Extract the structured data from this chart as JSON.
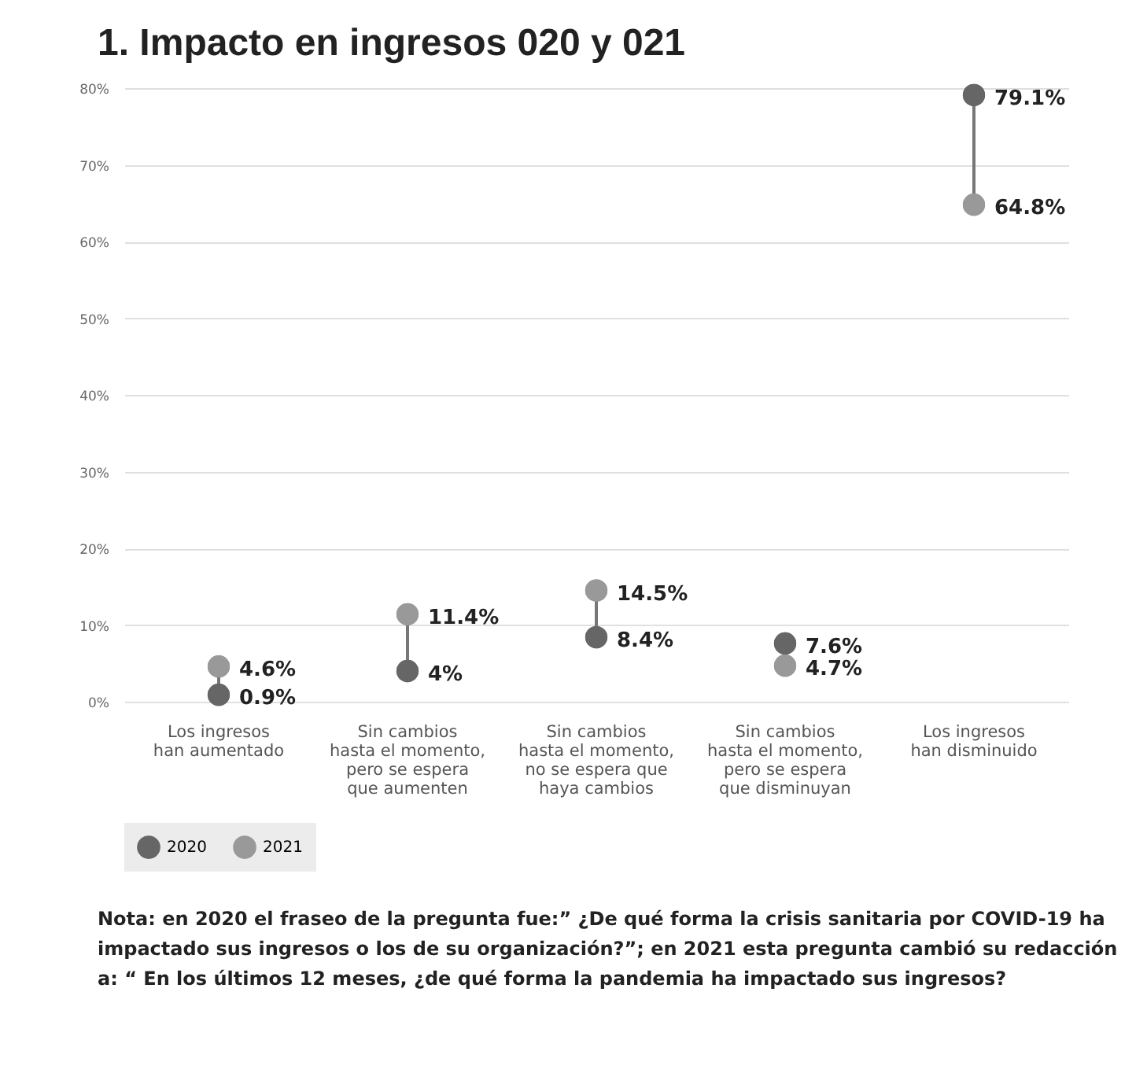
{
  "chart_data": {
    "type": "scatter",
    "title": "1. Impacto en ingresos 020 y 021",
    "categories": [
      "Los ingresos\nhan aumentado",
      "Sin cambios\nhasta el momento,\npero se espera\nque aumenten",
      "Sin cambios\nhasta el momento,\nno se espera que\nhaya cambios",
      "Sin cambios\nhasta el momento,\npero se espera\nque disminuyan",
      "Los ingresos\nhan disminuido"
    ],
    "series": [
      {
        "name": "2020",
        "color": "#666666",
        "values": [
          0.9,
          4,
          8.4,
          7.6,
          79.1
        ],
        "value_labels": [
          "0.9%",
          "4%",
          "8.4%",
          "7.6%",
          "79.1%"
        ]
      },
      {
        "name": "2021",
        "color": "#999999",
        "values": [
          4.6,
          11.4,
          14.5,
          4.7,
          64.8
        ],
        "value_labels": [
          "4.6%",
          "11.4%",
          "14.5%",
          "4.7%",
          "64.8%"
        ]
      }
    ],
    "ylim": [
      0,
      80
    ],
    "yticks": [
      {
        "value": 0,
        "label": "0%"
      },
      {
        "value": 10,
        "label": "10%"
      },
      {
        "value": 20,
        "label": "20%"
      },
      {
        "value": 30,
        "label": "30%"
      },
      {
        "value": 40,
        "label": "40%"
      },
      {
        "value": 50,
        "label": "50%"
      },
      {
        "value": 60,
        "label": "60%"
      },
      {
        "value": 70,
        "label": "70%"
      },
      {
        "value": 80,
        "label": "80%"
      }
    ],
    "grid": "y",
    "legend": "bottom left",
    "marker": "circle",
    "annotations": [
      "Nota: en 2020 el fraseo de la pregunta fue:” ¿De qué forma la crisis sanitaria por COVID-19 ha impactado sus ingresos o los de su organización?”; en 2021 esta pregunta cambió su redacción a: “ En los últimos 12 meses, ¿de qué forma la pandemia ha impactado sus ingresos?"
    ]
  }
}
